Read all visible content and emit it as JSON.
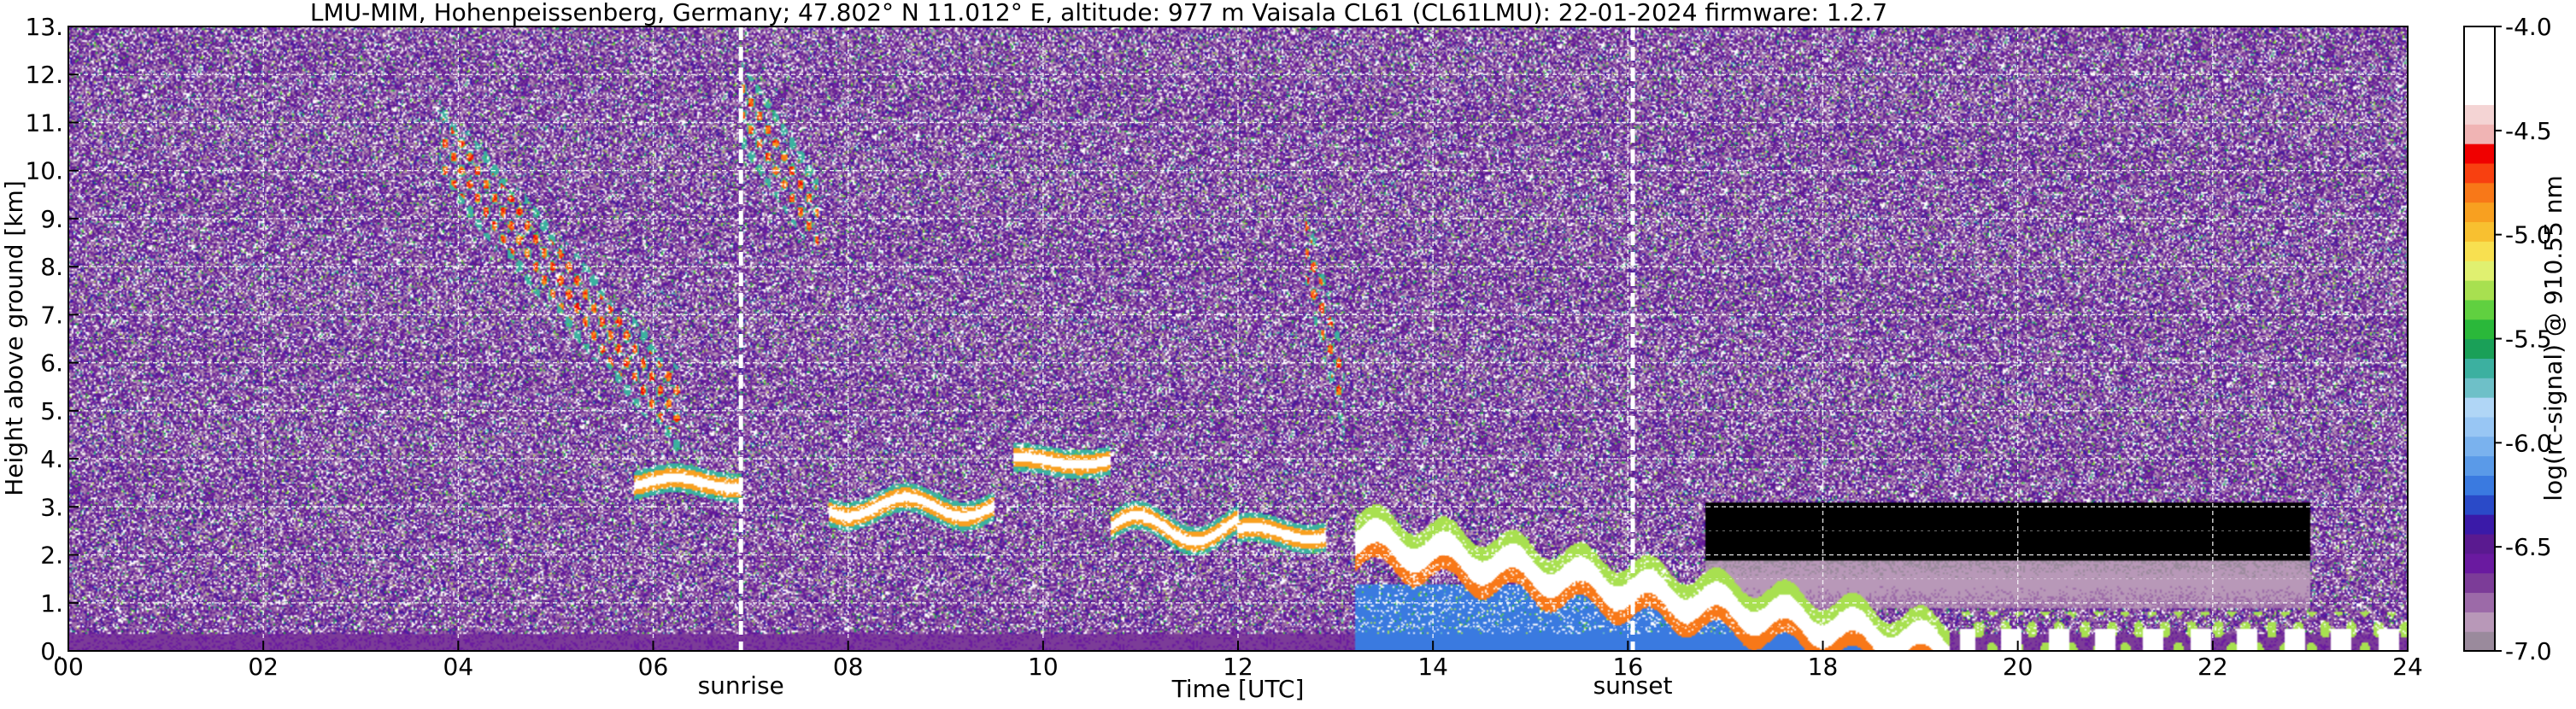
{
  "chart_data": {
    "type": "heatmap",
    "title": "LMU-MIM, Hohenpeissenberg, Germany; 47.802° N 11.012° E, altitude: 977 m    Vaisala CL61 (CL61LMU): 22-01-2024    firmware: 1.2.7",
    "xlabel": "Time [UTC]",
    "ylabel": "Height above ground [km]",
    "xlim": [
      0,
      24
    ],
    "ylim": [
      0,
      13
    ],
    "x_ticks": [
      "00",
      "02",
      "04",
      "06",
      "08",
      "10",
      "12",
      "14",
      "16",
      "18",
      "20",
      "22",
      "24"
    ],
    "y_ticks": [
      "0.",
      "1.",
      "2.",
      "3.",
      "4.",
      "5.",
      "6.",
      "7.",
      "8.",
      "9.",
      "10.",
      "11.",
      "12.",
      "13."
    ],
    "grid": true,
    "colorbar": {
      "label": "log(rc-signal) @ 910.55 nm",
      "range": [
        -7.0,
        -4.0
      ],
      "ticks": [
        "-4.0",
        "-4.5",
        "-5.0",
        "-5.5",
        "-6.0",
        "-6.5",
        "-7.0"
      ],
      "colors": [
        "#9a8a9c",
        "#b898b8",
        "#9c6aa8",
        "#7c3c98",
        "#6a1aa0",
        "#5a1a90",
        "#3a1aa8",
        "#2a4ac8",
        "#3a7ae0",
        "#5a9ae8",
        "#7ab2ee",
        "#98c6f4",
        "#b0d6f6",
        "#6ec0c8",
        "#3cb0a0",
        "#1aa058",
        "#2ab83a",
        "#60d040",
        "#a8e050",
        "#e0f070",
        "#f8e050",
        "#f8c030",
        "#f8a020",
        "#f87818",
        "#f84010",
        "#f00000",
        "#f0b4b4",
        "#f4d4d4",
        "#ffffff",
        "#ffffff",
        "#ffffff",
        "#ffffff"
      ]
    },
    "events": [
      {
        "label": "sunrise",
        "time_utc": 6.9
      },
      {
        "label": "sunset",
        "time_utc": 16.05
      }
    ],
    "features": [
      {
        "kind": "cloud_layer",
        "t": [
          5.8,
          6.9
        ],
        "h": [
          3.3,
          3.7
        ]
      },
      {
        "kind": "cloud_layer",
        "t": [
          7.8,
          9.5
        ],
        "h": [
          2.6,
          3.4
        ]
      },
      {
        "kind": "cloud_layer",
        "t": [
          9.7,
          10.7
        ],
        "h": [
          3.8,
          4.1
        ]
      },
      {
        "kind": "cloud_layer",
        "t": [
          10.7,
          12.0
        ],
        "h": [
          2.0,
          3.1
        ]
      },
      {
        "kind": "cloud_layer",
        "t": [
          12.0,
          12.9
        ],
        "h": [
          2.2,
          2.7
        ]
      },
      {
        "kind": "boundary_layer_top",
        "t": [
          13.2,
          19.3
        ],
        "h": [
          0.3,
          2.6
        ]
      },
      {
        "kind": "cirrus",
        "t": [
          3.8,
          6.3
        ],
        "h": [
          4.9,
          10.6
        ]
      },
      {
        "kind": "cirrus",
        "t": [
          6.9,
          7.7
        ],
        "h": [
          9.0,
          11.4
        ]
      },
      {
        "kind": "cirrus",
        "t": [
          12.7,
          13.1
        ],
        "h": [
          5.2,
          8.4
        ]
      },
      {
        "kind": "residual_clouds",
        "t": [
          19.4,
          24.0
        ],
        "h": [
          0.3,
          3.1
        ]
      }
    ]
  }
}
